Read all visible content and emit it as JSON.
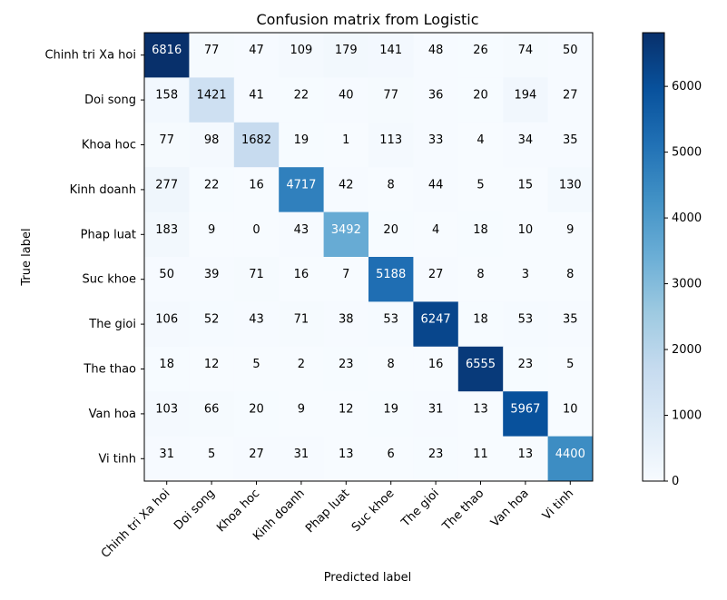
{
  "chart_data": {
    "type": "heatmap",
    "title": "Confusion matrix from Logistic",
    "xlabel": "Predicted label",
    "ylabel": "True label",
    "categories": [
      "Chinh tri Xa hoi",
      "Doi song",
      "Khoa hoc",
      "Kinh doanh",
      "Phap luat",
      "Suc khoe",
      "The gioi",
      "The thao",
      "Van hoa",
      "Vi tinh"
    ],
    "matrix": [
      [
        6816,
        77,
        47,
        109,
        179,
        141,
        48,
        26,
        74,
        50
      ],
      [
        158,
        1421,
        41,
        22,
        40,
        77,
        36,
        20,
        194,
        27
      ],
      [
        77,
        98,
        1682,
        19,
        1,
        113,
        33,
        4,
        34,
        35
      ],
      [
        277,
        22,
        16,
        4717,
        42,
        8,
        44,
        5,
        15,
        130
      ],
      [
        183,
        9,
        0,
        43,
        3492,
        20,
        4,
        18,
        10,
        9
      ],
      [
        50,
        39,
        71,
        16,
        7,
        5188,
        27,
        8,
        3,
        8
      ],
      [
        106,
        52,
        43,
        71,
        38,
        53,
        6247,
        18,
        53,
        35
      ],
      [
        18,
        12,
        5,
        2,
        23,
        8,
        16,
        6555,
        23,
        5
      ],
      [
        103,
        66,
        20,
        9,
        12,
        19,
        31,
        13,
        5967,
        10
      ],
      [
        31,
        5,
        27,
        31,
        13,
        6,
        23,
        11,
        13,
        4400
      ]
    ],
    "colorbar": {
      "colormap": "Blues",
      "range": [
        0,
        6816
      ],
      "ticks": [
        0,
        1000,
        2000,
        3000,
        4000,
        5000,
        6000
      ]
    }
  }
}
